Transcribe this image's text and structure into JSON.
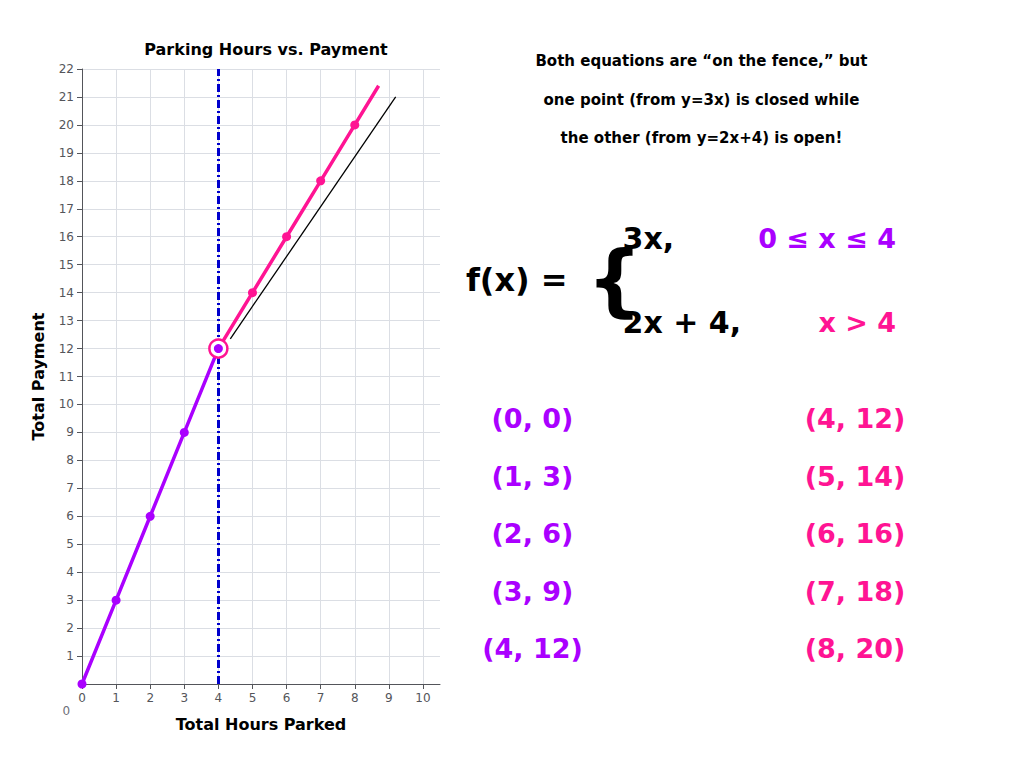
{
  "chart_data": {
    "type": "line",
    "title": "Parking Hours vs. Payment",
    "xlabel": "Total Hours Parked",
    "ylabel": "Total Payment",
    "xlim": [
      0,
      10.5
    ],
    "ylim": [
      0,
      22
    ],
    "xticks": [
      0,
      1,
      2,
      3,
      4,
      5,
      6,
      7,
      8,
      9,
      10
    ],
    "yticks": [
      1,
      2,
      3,
      4,
      5,
      6,
      7,
      8,
      9,
      10,
      11,
      12,
      13,
      14,
      15,
      16,
      17,
      18,
      19,
      20,
      21,
      22
    ],
    "grid": true,
    "series": [
      {
        "type": "line",
        "color": "#AA00FF",
        "marker": "circle",
        "line_style": "solid",
        "x": [
          0,
          1,
          2,
          3,
          4
        ],
        "values": [
          0,
          3,
          6,
          9,
          12
        ]
      },
      {
        "type": "line",
        "color": "#FF1493",
        "marker": "none",
        "line_style": "solid",
        "x": [
          4,
          5,
          6,
          7,
          8,
          8.7
        ],
        "values": [
          12,
          14,
          16,
          18,
          20,
          21.4
        ]
      },
      {
        "type": "scatter",
        "color": "#FF1493",
        "marker": "circle",
        "x": [
          4,
          5,
          6,
          7,
          8
        ],
        "values": [
          12,
          14,
          16,
          18,
          20
        ]
      },
      {
        "type": "line",
        "color": "#000000",
        "marker": "none",
        "line_style": "thin",
        "x": [
          4.35,
          9.2
        ],
        "values": [
          12.35,
          21.0
        ]
      },
      {
        "type": "scatter",
        "color": "#FF1493",
        "marker": "open_circle",
        "x": [
          4
        ],
        "values": [
          12
        ]
      },
      {
        "type": "scatter",
        "color": "#AA00FF",
        "marker": "circle",
        "x": [
          4
        ],
        "values": [
          12
        ]
      }
    ],
    "vlines": [
      {
        "x": 4,
        "color": "#0000CD",
        "line_style": "dashdot"
      }
    ],
    "annotations": {
      "description": [
        "Both equations are “on the fence,” but",
        "one point (from y=3x) is closed while",
        "the other (from y=2x+4) is open!"
      ],
      "formula": {
        "lhs": "f(x) =",
        "brace": "{",
        "cases": [
          {
            "expr": "3x,",
            "condition": "0 ≤ x ≤ 4",
            "color": "#AA00FF"
          },
          {
            "expr": "2x + 4,",
            "condition": "x > 4",
            "color": "#FF1493"
          }
        ]
      },
      "points": [
        {
          "color": "#AA00FF",
          "labels": [
            "(0, 0)",
            "(1, 3)",
            "(2, 6)",
            "(3, 9)",
            "(4, 12)"
          ]
        },
        {
          "color": "#FF1493",
          "labels": [
            "(4, 12)",
            "(5, 14)",
            "(6, 16)",
            "(7, 18)",
            "(8, 20)"
          ]
        }
      ],
      "origin_label": {
        "text": "0",
        "x": -0.35,
        "y": -0.55
      }
    }
  }
}
